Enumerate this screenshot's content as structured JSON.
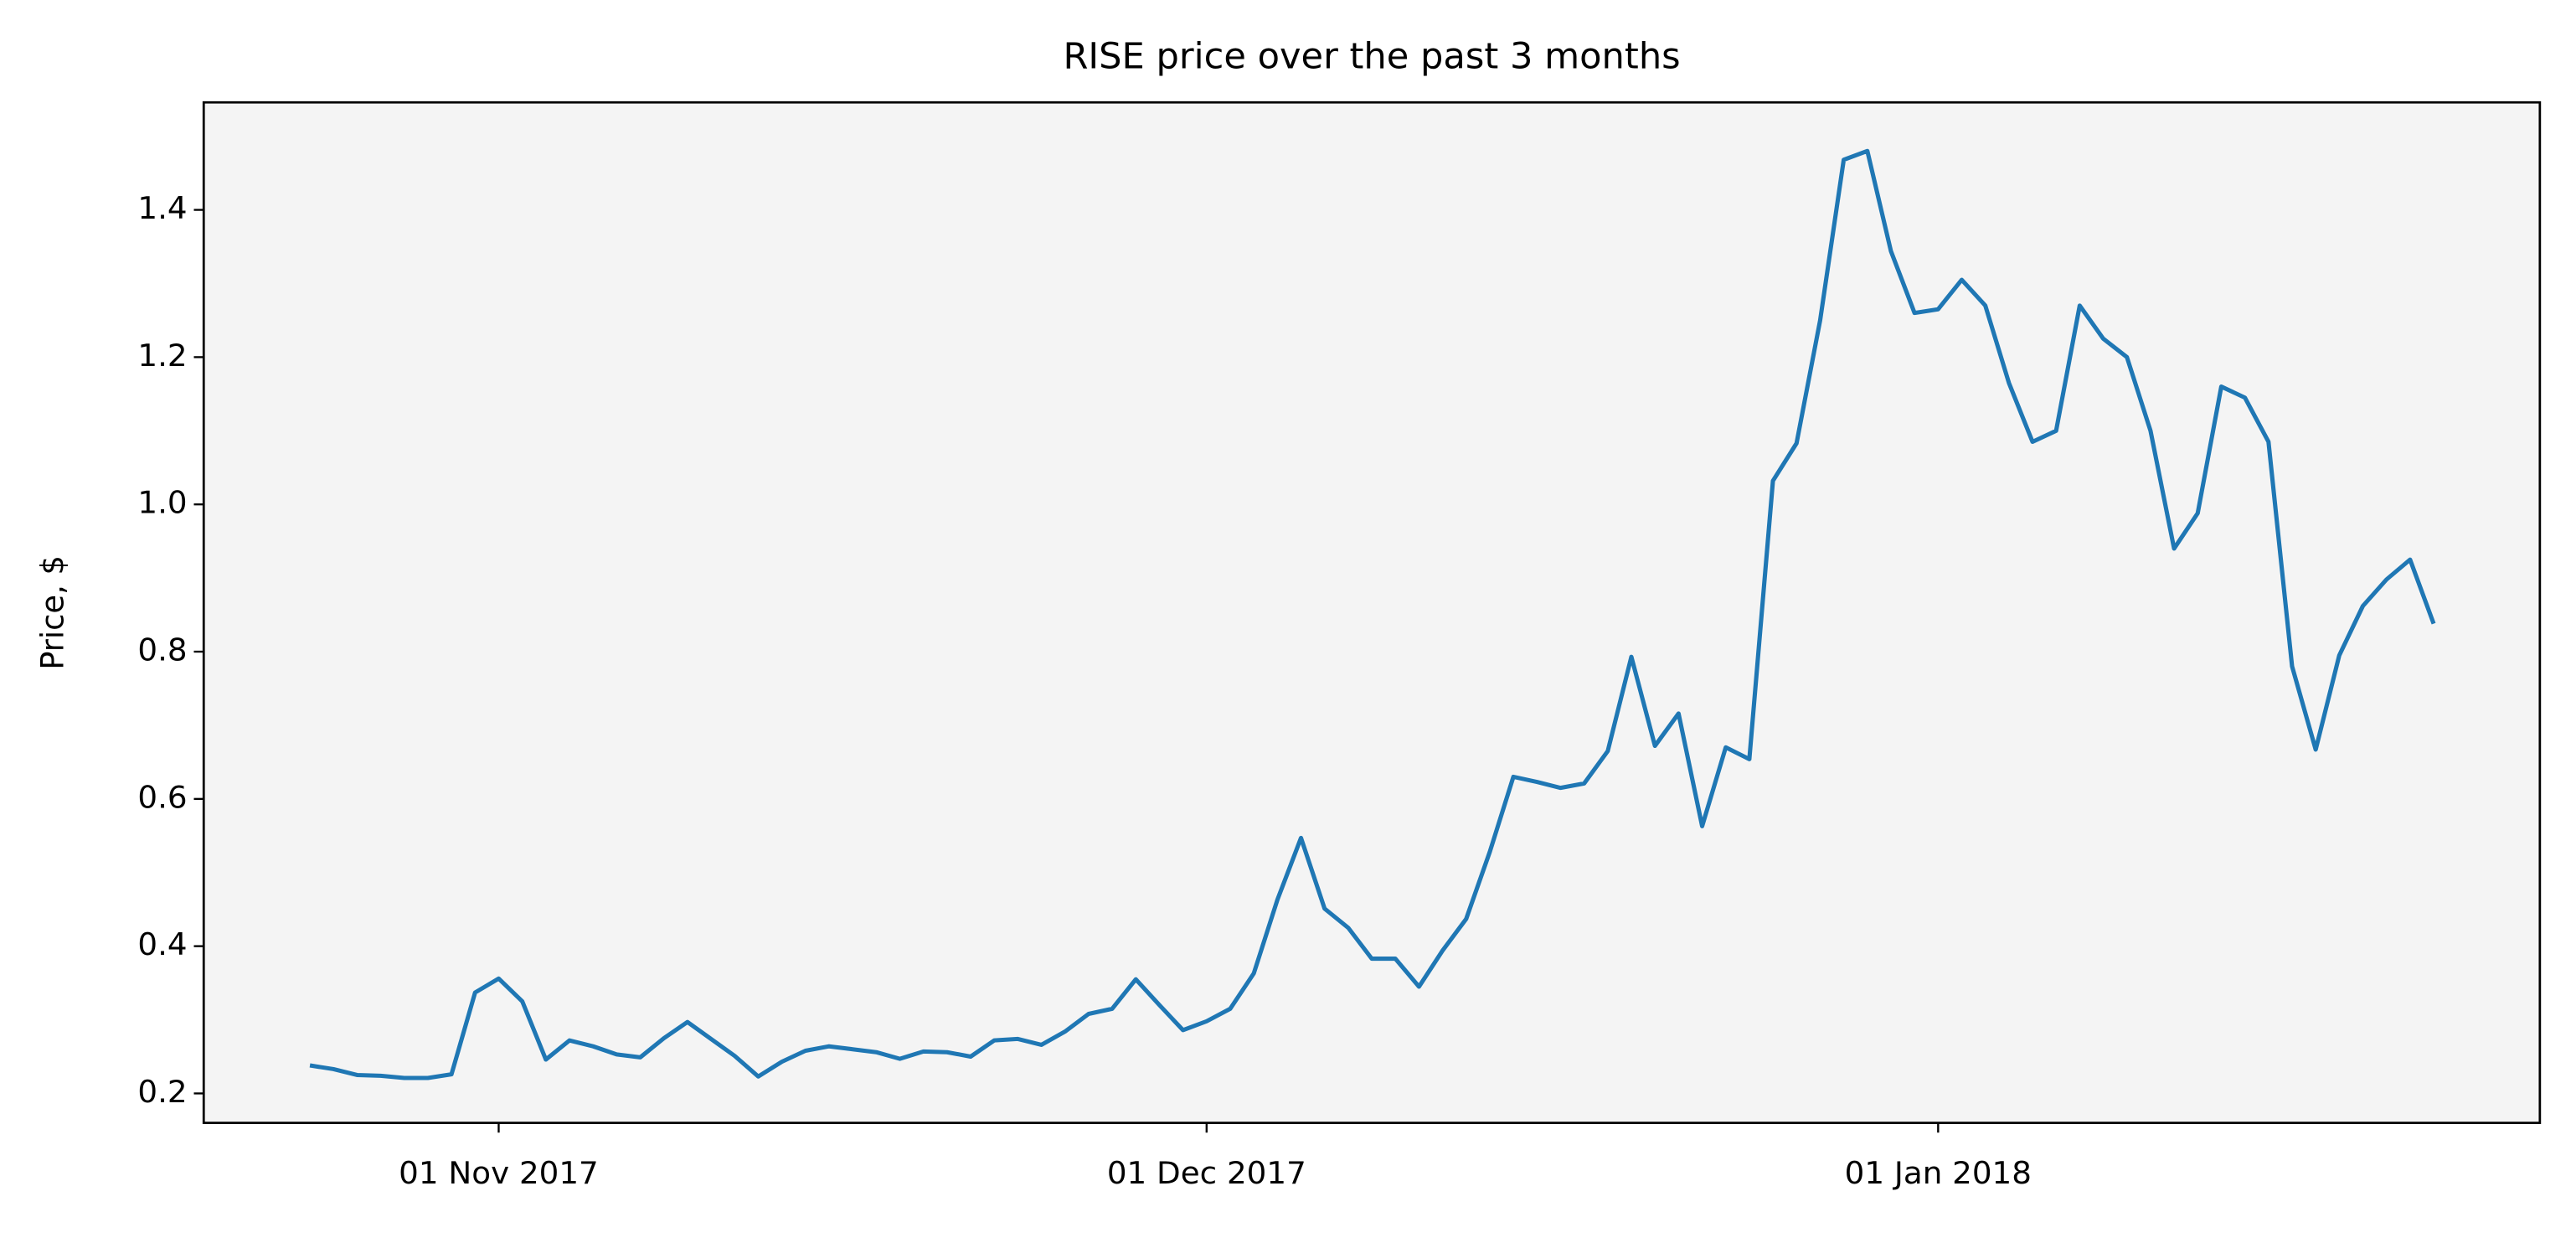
{
  "chart_data": {
    "type": "line",
    "title": "RISE price over the past 3 months",
    "ylabel": "Price, $",
    "color": "#1f77b4",
    "background": "#f4f4f4",
    "x": [
      "2017-10-24",
      "2017-10-25",
      "2017-10-26",
      "2017-10-27",
      "2017-10-28",
      "2017-10-29",
      "2017-10-30",
      "2017-10-31",
      "2017-11-01",
      "2017-11-02",
      "2017-11-03",
      "2017-11-04",
      "2017-11-05",
      "2017-11-06",
      "2017-11-07",
      "2017-11-08",
      "2017-11-09",
      "2017-11-10",
      "2017-11-11",
      "2017-11-12",
      "2017-11-13",
      "2017-11-14",
      "2017-11-15",
      "2017-11-16",
      "2017-11-17",
      "2017-11-18",
      "2017-11-19",
      "2017-11-20",
      "2017-11-21",
      "2017-11-22",
      "2017-11-23",
      "2017-11-24",
      "2017-11-25",
      "2017-11-26",
      "2017-11-27",
      "2017-11-28",
      "2017-11-29",
      "2017-11-30",
      "2017-12-01",
      "2017-12-02",
      "2017-12-03",
      "2017-12-04",
      "2017-12-05",
      "2017-12-06",
      "2017-12-07",
      "2017-12-08",
      "2017-12-09",
      "2017-12-10",
      "2017-12-11",
      "2017-12-12",
      "2017-12-13",
      "2017-12-14",
      "2017-12-15",
      "2017-12-16",
      "2017-12-17",
      "2017-12-18",
      "2017-12-19",
      "2017-12-20",
      "2017-12-21",
      "2017-12-22",
      "2017-12-23",
      "2017-12-24",
      "2017-12-25",
      "2017-12-26",
      "2017-12-27",
      "2017-12-28",
      "2017-12-29",
      "2017-12-30",
      "2017-12-31",
      "2018-01-01",
      "2018-01-02",
      "2018-01-03",
      "2018-01-04",
      "2018-01-05",
      "2018-01-06",
      "2018-01-07",
      "2018-01-08",
      "2018-01-09",
      "2018-01-10",
      "2018-01-11",
      "2018-01-12",
      "2018-01-13",
      "2018-01-14",
      "2018-01-15",
      "2018-01-16",
      "2018-01-17",
      "2018-01-18",
      "2018-01-19",
      "2018-01-20",
      "2018-01-21",
      "2018-01-22"
    ],
    "values": [
      0.238,
      0.233,
      0.225,
      0.224,
      0.221,
      0.221,
      0.226,
      0.337,
      0.356,
      0.325,
      0.246,
      0.272,
      0.264,
      0.253,
      0.249,
      0.275,
      0.297,
      0.274,
      0.251,
      0.223,
      0.243,
      0.258,
      0.264,
      0.26,
      0.256,
      0.247,
      0.257,
      0.256,
      0.25,
      0.272,
      0.274,
      0.266,
      0.284,
      0.308,
      0.315,
      0.355,
      0.32,
      0.286,
      0.298,
      0.315,
      0.363,
      0.463,
      0.547,
      0.451,
      0.425,
      0.383,
      0.383,
      0.345,
      0.394,
      0.437,
      0.528,
      0.63,
      0.623,
      0.615,
      0.621,
      0.665,
      0.793,
      0.672,
      0.716,
      0.563,
      0.67,
      0.654,
      1.032,
      1.083,
      1.25,
      1.468,
      1.48,
      1.344,
      1.26,
      1.265,
      1.305,
      1.27,
      1.165,
      1.085,
      1.1,
      1.27,
      1.225,
      1.2,
      1.1,
      0.94,
      0.988,
      1.16,
      1.145,
      1.085,
      0.78,
      0.667,
      0.795,
      0.862,
      0.898,
      0.925,
      0.838
    ],
    "xlim": [
      "2017-10-19T12:00:00Z",
      "2018-01-26T12:00:00Z"
    ],
    "xticks": [
      {
        "value": "2017-11-01",
        "label": "01 Nov 2017"
      },
      {
        "value": "2017-12-01",
        "label": "01 Dec 2017"
      },
      {
        "value": "2018-01-01",
        "label": "01 Jan 2018"
      }
    ],
    "ylim": [
      0.16,
      1.546
    ],
    "yticks": [
      0.2,
      0.4,
      0.6,
      0.8,
      {
        "value": 1,
        "label": "1.0"
      },
      1.2,
      1.4
    ]
  }
}
